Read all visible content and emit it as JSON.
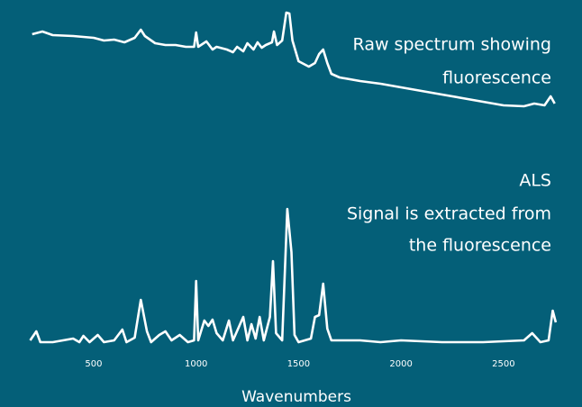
{
  "chart_data": {
    "type": "line",
    "annotations": [
      "Raw spectrum showing",
      "fluorescence",
      "ALS",
      "Signal is extracted from",
      "the fluorescence"
    ],
    "xlabel": "Wavenumbers",
    "xlim": [
      180,
      2760
    ],
    "xticks": [
      500,
      1000,
      1500,
      2000,
      2500
    ],
    "ylim": [
      0,
      400
    ],
    "series": [
      {
        "name": "Raw spectrum",
        "color": "#ffffff",
        "x": [
          200,
          250,
          300,
          400,
          500,
          550,
          600,
          650,
          700,
          730,
          750,
          800,
          850,
          900,
          950,
          990,
          1000,
          1010,
          1050,
          1080,
          1100,
          1150,
          1180,
          1200,
          1230,
          1250,
          1280,
          1300,
          1320,
          1340,
          1370,
          1380,
          1395,
          1420,
          1440,
          1455,
          1470,
          1500,
          1550,
          1580,
          1600,
          1620,
          1640,
          1660,
          1700,
          1800,
          1900,
          2000,
          2100,
          2200,
          2300,
          2400,
          2500,
          2600,
          2650,
          2700,
          2730,
          2750
        ],
        "values": [
          362,
          365,
          361,
          360,
          358,
          355,
          356,
          353,
          358,
          367,
          360,
          352,
          350,
          350,
          348,
          348,
          364,
          348,
          354,
          345,
          348,
          345,
          342,
          348,
          343,
          352,
          345,
          353,
          347,
          350,
          353,
          365,
          350,
          355,
          386,
          385,
          355,
          332,
          326,
          330,
          340,
          345,
          330,
          318,
          314,
          310,
          307,
          303,
          299,
          295,
          291,
          287,
          283,
          282,
          285,
          283,
          293,
          285
        ]
      },
      {
        "name": "ALS",
        "color": "#ffffff",
        "x": [
          190,
          220,
          240,
          300,
          350,
          400,
          430,
          450,
          480,
          520,
          550,
          600,
          640,
          660,
          700,
          730,
          760,
          780,
          820,
          850,
          880,
          920,
          960,
          990,
          1000,
          1010,
          1040,
          1060,
          1080,
          1100,
          1130,
          1160,
          1180,
          1230,
          1250,
          1270,
          1290,
          1310,
          1330,
          1360,
          1375,
          1390,
          1420,
          1445,
          1465,
          1480,
          1500,
          1560,
          1580,
          1600,
          1620,
          1640,
          1660,
          1700,
          1800,
          1900,
          2000,
          2200,
          2400,
          2600,
          2640,
          2680,
          2720,
          2740,
          2755
        ],
        "values": [
          22,
          32,
          20,
          20,
          22,
          24,
          20,
          27,
          20,
          28,
          20,
          22,
          34,
          20,
          25,
          67,
          32,
          20,
          28,
          32,
          22,
          28,
          20,
          22,
          88,
          22,
          44,
          38,
          45,
          30,
          22,
          44,
          22,
          48,
          22,
          40,
          24,
          48,
          22,
          48,
          110,
          30,
          22,
          168,
          120,
          28,
          20,
          24,
          48,
          50,
          85,
          35,
          22,
          22,
          22,
          20,
          22,
          20,
          20,
          22,
          30,
          20,
          22,
          55,
          42
        ]
      }
    ]
  }
}
